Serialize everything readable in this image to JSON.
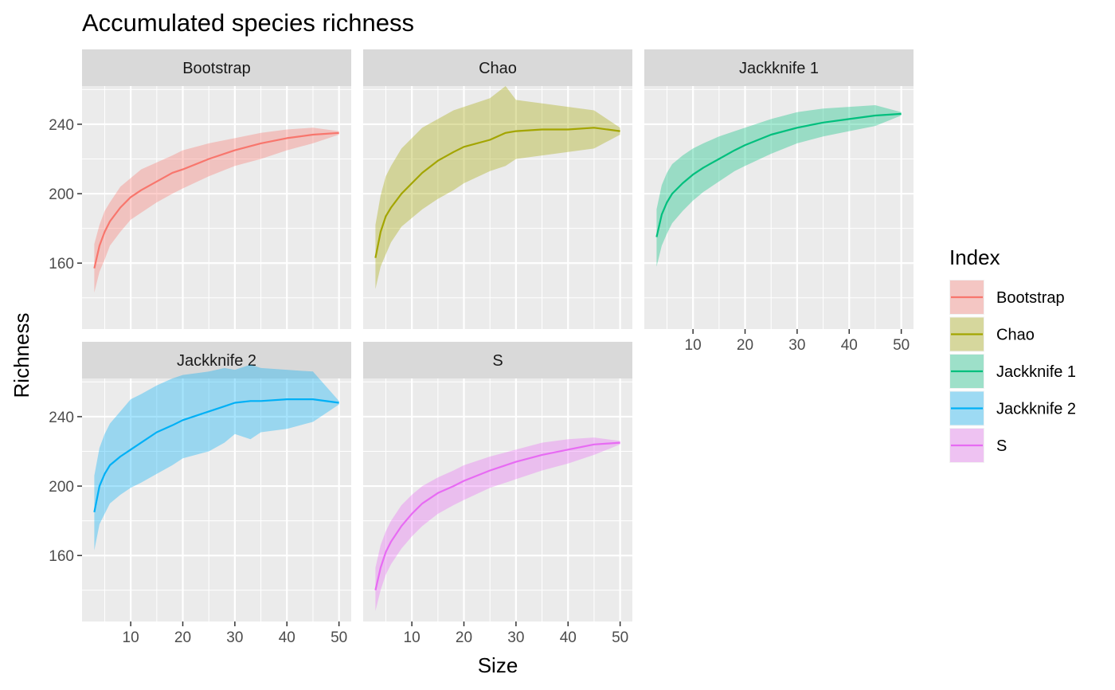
{
  "chart_data": {
    "type": "area",
    "title": "Accumulated species richness",
    "xlabel": "Size",
    "ylabel": "Richness",
    "xlim": [
      0.65,
      52.35
    ],
    "ylim": [
      122,
      262
    ],
    "x_ticks": [
      10,
      20,
      30,
      40,
      50
    ],
    "y_ticks": [
      160,
      200,
      240
    ],
    "grid": true,
    "legend": {
      "title": "Index",
      "position": "right"
    },
    "series": [
      {
        "name": "Bootstrap",
        "color": "#F8766D",
        "x": [
          3,
          4,
          5,
          6,
          8,
          10,
          12,
          15,
          18,
          20,
          25,
          30,
          35,
          40,
          45,
          50
        ],
        "mean": [
          157,
          170,
          178,
          184,
          192,
          198,
          202,
          207,
          212,
          214,
          220,
          225,
          229,
          232,
          234,
          235
        ],
        "lower": [
          143,
          155,
          162,
          170,
          178,
          185,
          189,
          195,
          200,
          203,
          210,
          216,
          220,
          225,
          229,
          234
        ],
        "upper": [
          171,
          182,
          190,
          195,
          204,
          209,
          214,
          218,
          222,
          225,
          229,
          232,
          235,
          237,
          238,
          236
        ]
      },
      {
        "name": "Chao",
        "color": "#A3A500",
        "x": [
          3,
          4,
          5,
          6,
          8,
          10,
          12,
          15,
          18,
          20,
          25,
          28,
          30,
          35,
          40,
          45,
          50
        ],
        "mean": [
          163,
          178,
          187,
          192,
          200,
          206,
          212,
          219,
          224,
          227,
          231,
          235,
          236,
          237,
          237,
          238,
          236
        ],
        "lower": [
          145,
          158,
          165,
          172,
          181,
          186,
          191,
          197,
          202,
          206,
          213,
          216,
          220,
          222,
          224,
          226,
          234
        ],
        "upper": [
          182,
          199,
          210,
          216,
          226,
          232,
          238,
          243,
          248,
          250,
          255,
          262,
          254,
          252,
          250,
          248,
          238
        ]
      },
      {
        "name": "Jackknife 1",
        "color": "#00BF7D",
        "x": [
          3,
          4,
          5,
          6,
          8,
          10,
          12,
          15,
          18,
          20,
          25,
          30,
          35,
          40,
          45,
          50
        ],
        "mean": [
          175,
          188,
          195,
          200,
          206,
          211,
          215,
          220,
          225,
          228,
          234,
          238,
          241,
          243,
          245,
          246
        ],
        "lower": [
          158,
          170,
          177,
          183,
          190,
          196,
          201,
          207,
          213,
          216,
          223,
          229,
          233,
          236,
          239,
          245
        ],
        "upper": [
          191,
          205,
          212,
          217,
          222,
          226,
          229,
          233,
          236,
          238,
          243,
          247,
          249,
          250,
          251,
          247
        ]
      },
      {
        "name": "Jackknife 2",
        "color": "#00B0F6",
        "x": [
          3,
          4,
          5,
          6,
          8,
          10,
          12,
          15,
          18,
          20,
          25,
          28,
          30,
          33,
          35,
          40,
          45,
          50
        ],
        "mean": [
          185,
          200,
          207,
          212,
          217,
          221,
          225,
          231,
          235,
          238,
          243,
          246,
          248,
          249,
          249,
          250,
          250,
          248
        ],
        "lower": [
          163,
          178,
          184,
          190,
          195,
          199,
          202,
          207,
          212,
          216,
          220,
          225,
          230,
          227,
          231,
          233,
          237,
          247
        ],
        "upper": [
          206,
          222,
          230,
          236,
          243,
          250,
          253,
          258,
          262,
          264,
          266,
          268,
          267,
          270,
          268,
          267,
          266,
          249
        ]
      },
      {
        "name": "S",
        "color": "#E76BF3",
        "x": [
          3,
          4,
          5,
          6,
          8,
          10,
          12,
          15,
          18,
          20,
          25,
          30,
          35,
          40,
          45,
          50
        ],
        "mean": [
          140,
          153,
          162,
          168,
          177,
          184,
          190,
          196,
          200,
          203,
          209,
          214,
          218,
          221,
          224,
          225
        ],
        "lower": [
          128,
          140,
          149,
          155,
          164,
          171,
          177,
          184,
          189,
          192,
          199,
          204,
          209,
          213,
          218,
          224
        ],
        "upper": [
          153,
          166,
          174,
          180,
          189,
          195,
          200,
          205,
          209,
          212,
          217,
          221,
          225,
          227,
          228,
          226
        ]
      }
    ]
  }
}
